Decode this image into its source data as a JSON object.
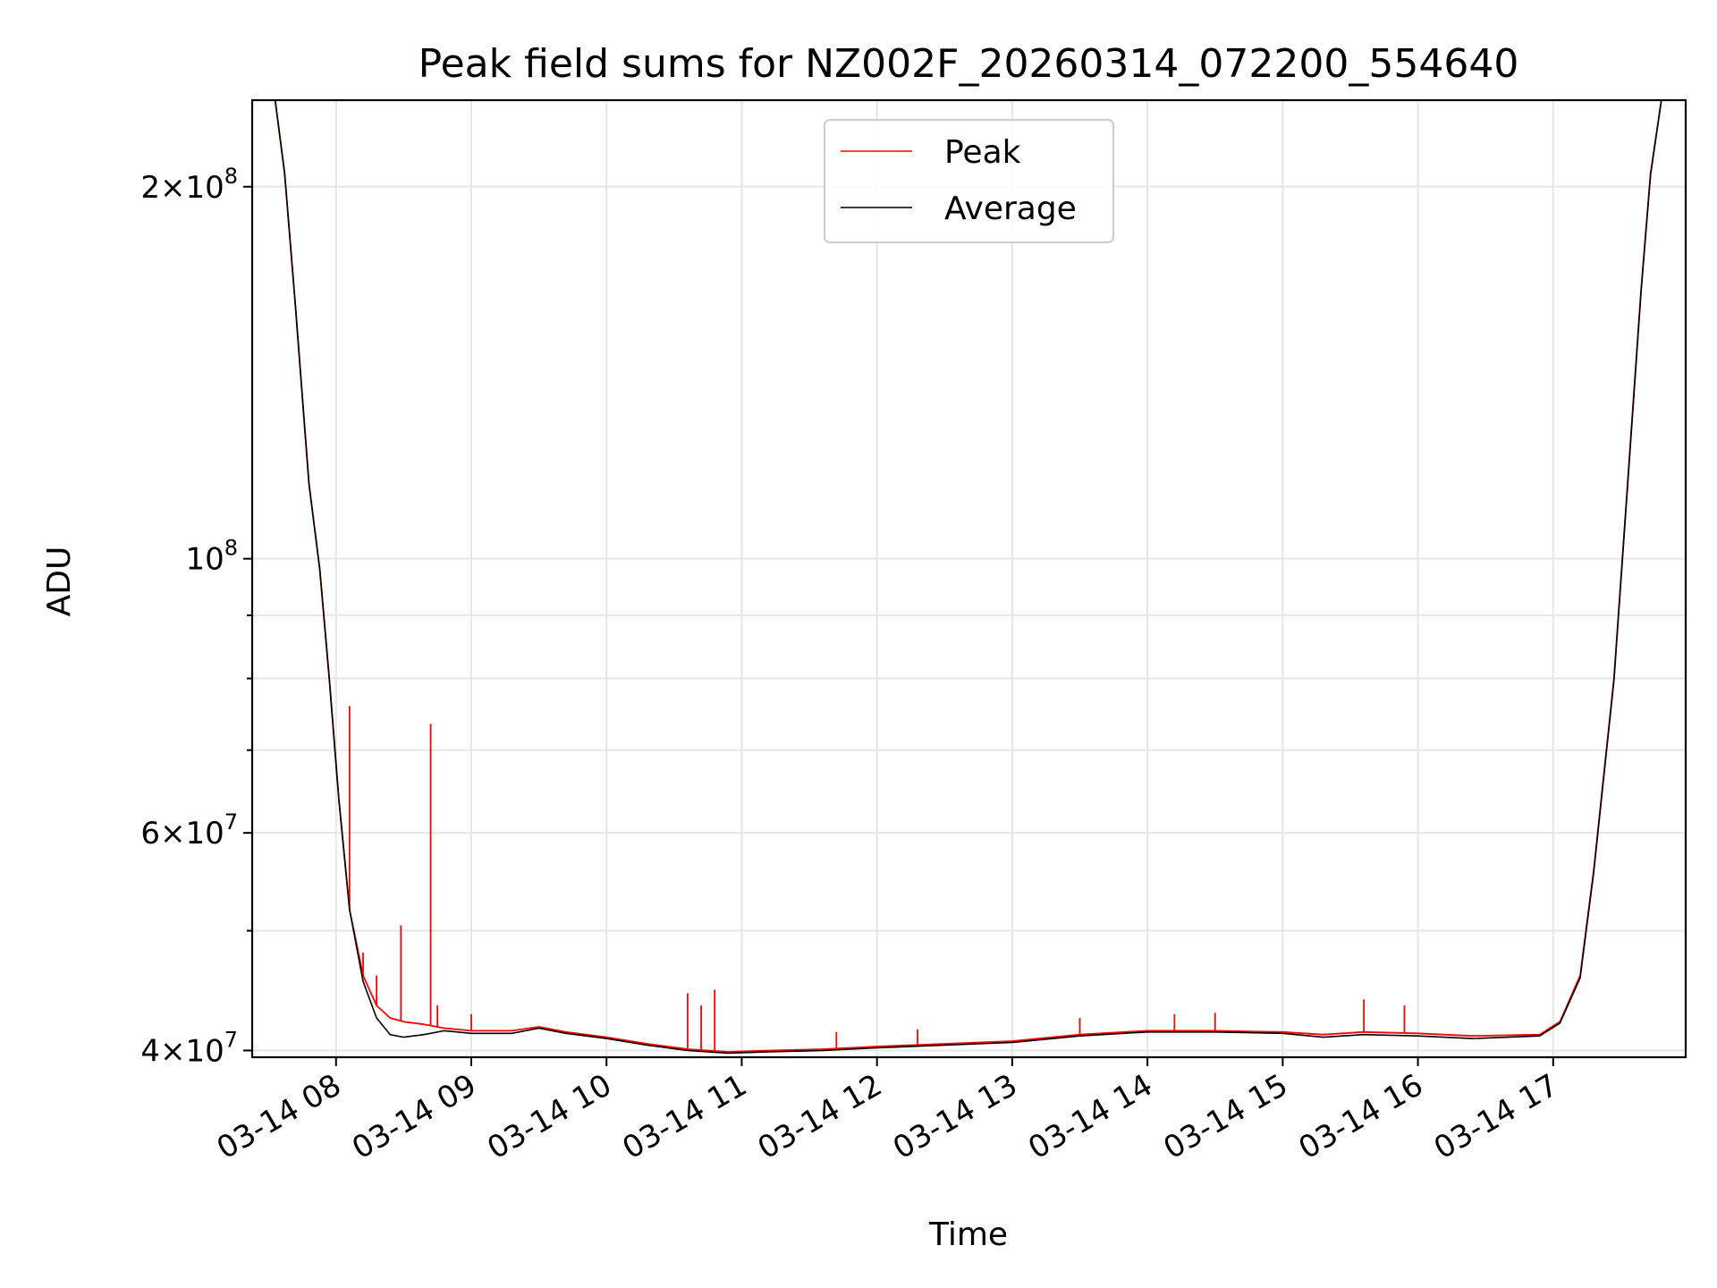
{
  "chart_data": {
    "type": "line",
    "title": "Peak field sums for NZ002F_20260314_072200_554640",
    "xlabel": "Time",
    "ylabel": "ADU",
    "yscale": "log",
    "ylim": [
      39500000,
      235000000
    ],
    "xlim_hours": [
      7.38,
      17.98
    ],
    "grid": true,
    "legend_position": "upper center",
    "x_ticks": [
      {
        "hour": 8,
        "label": "03-14 08"
      },
      {
        "hour": 9,
        "label": "03-14 09"
      },
      {
        "hour": 10,
        "label": "03-14 10"
      },
      {
        "hour": 11,
        "label": "03-14 11"
      },
      {
        "hour": 12,
        "label": "03-14 12"
      },
      {
        "hour": 13,
        "label": "03-14 13"
      },
      {
        "hour": 14,
        "label": "03-14 14"
      },
      {
        "hour": 15,
        "label": "03-14 15"
      },
      {
        "hour": 16,
        "label": "03-14 16"
      },
      {
        "hour": 17,
        "label": "03-14 17"
      }
    ],
    "y_major_ticks": [
      {
        "value": 40000000,
        "mantissa": "4",
        "exponent": "7"
      },
      {
        "value": 60000000,
        "mantissa": "6",
        "exponent": "7"
      },
      {
        "value": 100000000,
        "mantissa": "",
        "exponent": "8"
      },
      {
        "value": 200000000,
        "mantissa": "2",
        "exponent": "8"
      }
    ],
    "y_minor_grid": [
      50000000,
      70000000,
      80000000,
      90000000
    ],
    "series": [
      {
        "name": "Peak",
        "color": "#ff0000",
        "points": [
          [
            7.38,
            235000000
          ],
          [
            7.55,
            235000000
          ],
          [
            7.62,
            205000000
          ],
          [
            7.7,
            160000000
          ],
          [
            7.8,
            115000000
          ],
          [
            7.88,
            98000000
          ],
          [
            7.95,
            80000000
          ],
          [
            8.02,
            64000000
          ],
          [
            8.1,
            52000000
          ],
          [
            8.2,
            46000000
          ],
          [
            8.3,
            43500000
          ],
          [
            8.4,
            42500000
          ],
          [
            8.5,
            42200000
          ],
          [
            8.65,
            42000000
          ],
          [
            8.8,
            41700000
          ],
          [
            9.0,
            41500000
          ],
          [
            9.3,
            41500000
          ],
          [
            9.5,
            41800000
          ],
          [
            9.7,
            41400000
          ],
          [
            10.0,
            41000000
          ],
          [
            10.3,
            40500000
          ],
          [
            10.6,
            40100000
          ],
          [
            10.9,
            39900000
          ],
          [
            11.2,
            40000000
          ],
          [
            11.6,
            40100000
          ],
          [
            12.0,
            40300000
          ],
          [
            12.5,
            40500000
          ],
          [
            13.0,
            40700000
          ],
          [
            13.5,
            41200000
          ],
          [
            14.0,
            41500000
          ],
          [
            14.5,
            41500000
          ],
          [
            15.0,
            41400000
          ],
          [
            15.3,
            41200000
          ],
          [
            15.6,
            41400000
          ],
          [
            16.0,
            41300000
          ],
          [
            16.4,
            41100000
          ],
          [
            16.9,
            41200000
          ],
          [
            17.05,
            42200000
          ],
          [
            17.2,
            46000000
          ],
          [
            17.3,
            56000000
          ],
          [
            17.45,
            80000000
          ],
          [
            17.55,
            115000000
          ],
          [
            17.65,
            165000000
          ],
          [
            17.72,
            205000000
          ],
          [
            17.8,
            235000000
          ],
          [
            17.98,
            235000000
          ]
        ],
        "spikes": [
          [
            8.1,
            76000000
          ],
          [
            8.7,
            73500000
          ],
          [
            8.48,
            50500000
          ],
          [
            8.2,
            48000000
          ],
          [
            8.3,
            46000000
          ],
          [
            8.75,
            43500000
          ],
          [
            9.0,
            42800000
          ],
          [
            10.6,
            44500000
          ],
          [
            10.8,
            44800000
          ],
          [
            10.7,
            43500000
          ],
          [
            15.6,
            44000000
          ],
          [
            15.9,
            43500000
          ],
          [
            14.2,
            42800000
          ],
          [
            14.5,
            42900000
          ],
          [
            13.5,
            42500000
          ],
          [
            12.3,
            41600000
          ],
          [
            11.7,
            41400000
          ]
        ]
      },
      {
        "name": "Average",
        "color": "#000000",
        "points": [
          [
            7.38,
            235000000
          ],
          [
            7.55,
            235000000
          ],
          [
            7.62,
            205000000
          ],
          [
            7.7,
            160000000
          ],
          [
            7.8,
            115000000
          ],
          [
            7.88,
            98000000
          ],
          [
            7.95,
            80000000
          ],
          [
            8.02,
            64000000
          ],
          [
            8.1,
            52000000
          ],
          [
            8.2,
            45500000
          ],
          [
            8.3,
            42500000
          ],
          [
            8.4,
            41200000
          ],
          [
            8.5,
            41000000
          ],
          [
            8.65,
            41200000
          ],
          [
            8.8,
            41500000
          ],
          [
            9.0,
            41300000
          ],
          [
            9.3,
            41300000
          ],
          [
            9.5,
            41700000
          ],
          [
            9.7,
            41300000
          ],
          [
            10.0,
            40900000
          ],
          [
            10.3,
            40400000
          ],
          [
            10.6,
            40000000
          ],
          [
            10.9,
            39800000
          ],
          [
            11.2,
            39900000
          ],
          [
            11.6,
            40000000
          ],
          [
            12.0,
            40200000
          ],
          [
            12.5,
            40400000
          ],
          [
            13.0,
            40600000
          ],
          [
            13.5,
            41100000
          ],
          [
            14.0,
            41400000
          ],
          [
            14.5,
            41400000
          ],
          [
            15.0,
            41300000
          ],
          [
            15.3,
            41000000
          ],
          [
            15.6,
            41200000
          ],
          [
            16.0,
            41100000
          ],
          [
            16.4,
            40900000
          ],
          [
            16.9,
            41100000
          ],
          [
            17.05,
            42100000
          ],
          [
            17.2,
            45800000
          ],
          [
            17.3,
            55800000
          ],
          [
            17.45,
            79800000
          ],
          [
            17.55,
            114500000
          ],
          [
            17.65,
            164500000
          ],
          [
            17.72,
            204500000
          ],
          [
            17.8,
            235000000
          ],
          [
            17.98,
            235000000
          ]
        ]
      }
    ]
  }
}
